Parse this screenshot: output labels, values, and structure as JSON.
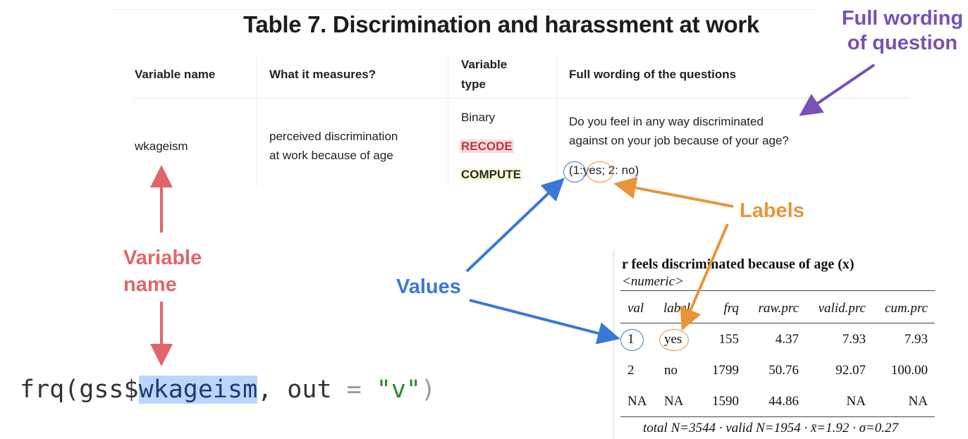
{
  "table": {
    "title": "Table 7. Discrimination and harassment at work",
    "headers": [
      "Variable name",
      "What it measures?",
      "Variable type",
      "Full wording of the questions"
    ],
    "header_type_line1": "Variable",
    "header_type_line2": "type",
    "row": {
      "variable_name": "wkageism",
      "measures_line1": "perceived discrimination",
      "measures_line2": "at work because of age",
      "type_binary": "Binary",
      "type_recode": "RECODE",
      "type_compute": "COMPUTE",
      "wording_line1": "Do you feel in any way discriminated",
      "wording_line2": "against on your job because of your age?",
      "coding": {
        "open": "(",
        "value_yes": "1:",
        "label_yes": "yes;",
        "rest": " 2: no)"
      }
    }
  },
  "annotations": {
    "full_wording_line1": "Full wording",
    "full_wording_line2": "of question",
    "labels": "Labels",
    "variable_name_line1": "Variable",
    "variable_name_line2": "name",
    "values": "Values"
  },
  "code": {
    "fn": "frq(gss$",
    "var": "wkageism",
    "args_a": ", out ",
    "eq": "=",
    "args_b": " ",
    "str": "\"v\"",
    "close": ")"
  },
  "frq_output": {
    "title": "r feels discriminated because of age (x)",
    "subtitle": "<numeric>",
    "columns": [
      "val",
      "label",
      "frq",
      "raw.prc",
      "valid.prc",
      "cum.prc"
    ],
    "rows": [
      [
        "1",
        "yes",
        "155",
        "4.37",
        "7.93",
        "7.93"
      ],
      [
        "2",
        "no",
        "1799",
        "50.76",
        "92.07",
        "100.00"
      ],
      [
        "NA",
        "NA",
        "1590",
        "44.86",
        "NA",
        "NA"
      ]
    ],
    "footer": "total N=3544 · valid N=1954 · x̄=1.92 · σ=0.27"
  },
  "colors": {
    "purple": "#7551b8",
    "orange": "#e8953a",
    "red": "#e0666b",
    "blue": "#3a78d6",
    "recode_bg": "#fbd9dc",
    "compute_bg": "#fdfbe0",
    "code_highlight": "#b9d7fb"
  }
}
